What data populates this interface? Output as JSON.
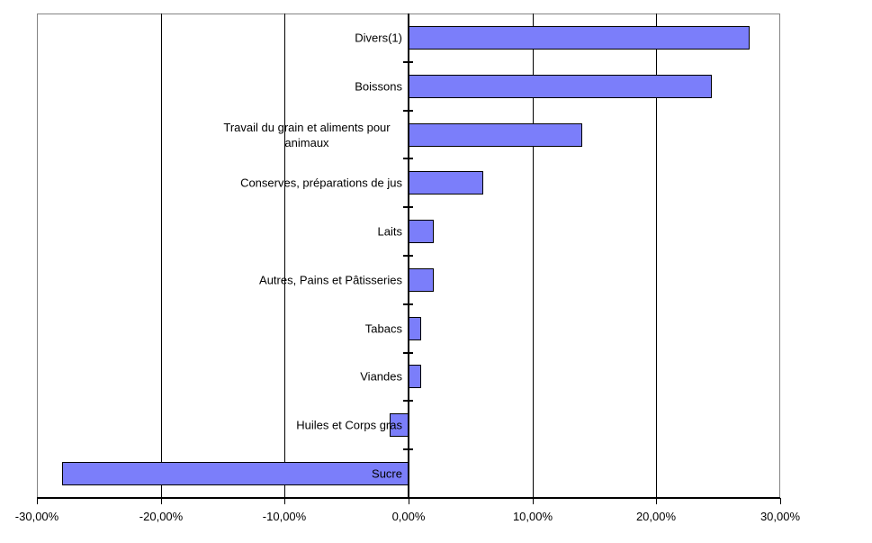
{
  "chart_data": {
    "type": "bar",
    "orientation": "horizontal",
    "title": "",
    "xlabel": "",
    "ylabel": "",
    "value_unit": "percent",
    "grid": true,
    "legend": null,
    "categories": [
      "Divers(1)",
      "Boissons",
      "Travail du grain et aliments pour animaux",
      "Conserves, préparations de jus",
      "Laits",
      "Autres, Pains et Pâtisseries",
      "Tabacs",
      "Viandes",
      "Huiles et Corps gras",
      "Sucre"
    ],
    "values": [
      27.5,
      24.5,
      14,
      6,
      2,
      2,
      1,
      1,
      -1.5,
      -28
    ],
    "xlim": [
      -30,
      30
    ],
    "x_ticks": [
      {
        "value": -30,
        "label": "-30,00%"
      },
      {
        "value": -20,
        "label": "-20,00%"
      },
      {
        "value": -10,
        "label": "-10,00%"
      },
      {
        "value": 0,
        "label": "0,00%"
      },
      {
        "value": 10,
        "label": "10,00%"
      },
      {
        "value": 20,
        "label": "20,00%"
      },
      {
        "value": 30,
        "label": "30,00%"
      }
    ],
    "colors": {
      "bar_fill": "#7B7EFA",
      "bar_border": "#000000",
      "gridline": "#000000",
      "zero_axis": "#000000",
      "plot_frame": "#848484",
      "text": "#000000",
      "background": "#ffffff"
    }
  }
}
